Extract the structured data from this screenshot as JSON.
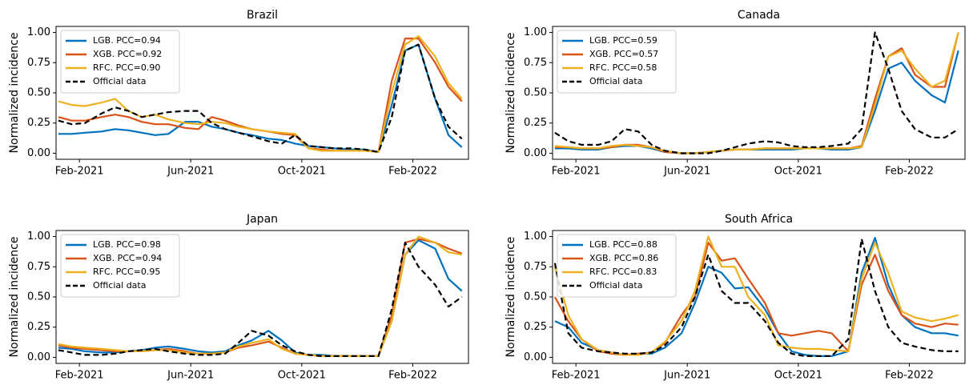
{
  "chart_data": [
    {
      "type": "line",
      "title": "Brazil",
      "ylabel": "Normalized incidence",
      "legend": "upper left",
      "x": [
        2021.02,
        2021.06,
        2021.1,
        2021.15,
        2021.19,
        2021.23,
        2021.27,
        2021.31,
        2021.35,
        2021.4,
        2021.44,
        2021.48,
        2021.52,
        2021.56,
        2021.6,
        2021.65,
        2021.69,
        2021.73,
        2021.77,
        2021.81,
        2021.85,
        2021.9,
        2021.94,
        2021.98,
        2022.02,
        2022.06,
        2022.1,
        2022.15,
        2022.19,
        2022.23
      ],
      "xlim": [
        2021.013,
        2022.25
      ],
      "xticks": [
        {
          "value": 2021.083,
          "label": "Feb-2021"
        },
        {
          "value": 2021.417,
          "label": "Jun-2021"
        },
        {
          "value": 2021.75,
          "label": "Oct-2021"
        },
        {
          "value": 2022.083,
          "label": "Feb-2022"
        }
      ],
      "ylim": [
        -0.05,
        1.05
      ],
      "yticks": [
        {
          "value": 0,
          "label": "0.00"
        },
        {
          "value": 0.25,
          "label": "0.25"
        },
        {
          "value": 0.5,
          "label": "0.50"
        },
        {
          "value": 0.75,
          "label": "0.75"
        },
        {
          "value": 1,
          "label": "1.00"
        }
      ],
      "series": [
        {
          "name": "LGB. PCC=0.94",
          "color": "#0072bd",
          "linestyle": "solid",
          "values": [
            0.16,
            0.16,
            0.17,
            0.18,
            0.2,
            0.19,
            0.17,
            0.15,
            0.16,
            0.26,
            0.26,
            0.22,
            0.2,
            0.17,
            0.15,
            0.12,
            0.11,
            0.08,
            0.06,
            0.05,
            0.04,
            0.03,
            0.03,
            0.01,
            0.4,
            0.85,
            0.9,
            0.45,
            0.15,
            0.05
          ]
        },
        {
          "name": "XGB. PCC=0.92",
          "color": "#d95319",
          "linestyle": "solid",
          "values": [
            0.3,
            0.27,
            0.27,
            0.3,
            0.32,
            0.3,
            0.26,
            0.24,
            0.24,
            0.21,
            0.2,
            0.3,
            0.27,
            0.23,
            0.2,
            0.18,
            0.16,
            0.15,
            0.04,
            0.03,
            0.02,
            0.02,
            0.02,
            0.01,
            0.6,
            0.95,
            0.95,
            0.75,
            0.55,
            0.43
          ]
        },
        {
          "name": "RFC. PCC=0.90",
          "color": "#edb120",
          "linestyle": "solid",
          "values": [
            0.43,
            0.4,
            0.39,
            0.42,
            0.45,
            0.35,
            0.3,
            0.32,
            0.28,
            0.25,
            0.24,
            0.26,
            0.25,
            0.22,
            0.2,
            0.18,
            0.17,
            0.16,
            0.04,
            0.02,
            0.02,
            0.02,
            0.02,
            0.01,
            0.5,
            0.9,
            0.97,
            0.8,
            0.58,
            0.45
          ]
        },
        {
          "name": "Official data",
          "color": "#000000",
          "linestyle": "dashed",
          "values": [
            0.27,
            0.24,
            0.25,
            0.33,
            0.38,
            0.35,
            0.3,
            0.32,
            0.34,
            0.35,
            0.35,
            0.25,
            0.2,
            0.17,
            0.14,
            0.1,
            0.08,
            0.15,
            0.06,
            0.05,
            0.04,
            0.04,
            0.03,
            0.01,
            0.3,
            0.85,
            0.9,
            0.45,
            0.22,
            0.12
          ]
        }
      ]
    },
    {
      "type": "line",
      "title": "Canada",
      "ylabel": "Normalized incidence",
      "legend": "upper left",
      "x": [
        2021.02,
        2021.06,
        2021.1,
        2021.15,
        2021.19,
        2021.23,
        2021.27,
        2021.31,
        2021.35,
        2021.4,
        2021.44,
        2021.48,
        2021.52,
        2021.56,
        2021.6,
        2021.65,
        2021.69,
        2021.73,
        2021.77,
        2021.81,
        2021.85,
        2021.9,
        2021.94,
        2021.98,
        2022.02,
        2022.06,
        2022.1,
        2022.15,
        2022.19,
        2022.23
      ],
      "xlim": [
        2021.013,
        2022.25
      ],
      "xticks": [
        {
          "value": 2021.083,
          "label": "Feb-2021"
        },
        {
          "value": 2021.417,
          "label": "Jun-2021"
        },
        {
          "value": 2021.75,
          "label": "Oct-2021"
        },
        {
          "value": 2022.083,
          "label": "Feb-2022"
        }
      ],
      "ylim": [
        -0.05,
        1.05
      ],
      "yticks": [
        {
          "value": 0,
          "label": "0.00"
        },
        {
          "value": 0.25,
          "label": "0.25"
        },
        {
          "value": 0.5,
          "label": "0.50"
        },
        {
          "value": 0.75,
          "label": "0.75"
        },
        {
          "value": 1,
          "label": "1.00"
        }
      ],
      "series": [
        {
          "name": "LGB. PCC=0.59",
          "color": "#0072bd",
          "linestyle": "solid",
          "values": [
            0.04,
            0.04,
            0.03,
            0.03,
            0.05,
            0.06,
            0.06,
            0.04,
            0.01,
            0.0,
            0.0,
            0.01,
            0.02,
            0.03,
            0.03,
            0.03,
            0.03,
            0.03,
            0.04,
            0.04,
            0.03,
            0.03,
            0.05,
            0.35,
            0.7,
            0.75,
            0.6,
            0.48,
            0.42,
            0.85
          ]
        },
        {
          "name": "XGB. PCC=0.57",
          "color": "#d95319",
          "linestyle": "solid",
          "values": [
            0.05,
            0.05,
            0.04,
            0.04,
            0.05,
            0.07,
            0.07,
            0.05,
            0.01,
            0.0,
            0.0,
            0.01,
            0.02,
            0.03,
            0.03,
            0.04,
            0.04,
            0.04,
            0.04,
            0.04,
            0.04,
            0.04,
            0.06,
            0.45,
            0.8,
            0.87,
            0.65,
            0.55,
            0.55,
            1.0
          ]
        },
        {
          "name": "RFC. PCC=0.58",
          "color": "#edb120",
          "linestyle": "solid",
          "values": [
            0.06,
            0.05,
            0.04,
            0.04,
            0.06,
            0.07,
            0.06,
            0.05,
            0.02,
            0.0,
            0.0,
            0.01,
            0.02,
            0.03,
            0.03,
            0.04,
            0.04,
            0.04,
            0.04,
            0.04,
            0.04,
            0.04,
            0.05,
            0.4,
            0.8,
            0.85,
            0.7,
            0.55,
            0.6,
            1.0
          ]
        },
        {
          "name": "Official data",
          "color": "#000000",
          "linestyle": "dashed",
          "values": [
            0.17,
            0.1,
            0.07,
            0.07,
            0.1,
            0.2,
            0.18,
            0.07,
            0.02,
            0.0,
            0.0,
            0.0,
            0.02,
            0.05,
            0.08,
            0.1,
            0.09,
            0.06,
            0.05,
            0.05,
            0.06,
            0.08,
            0.2,
            1.0,
            0.7,
            0.35,
            0.2,
            0.13,
            0.13,
            0.2
          ]
        }
      ]
    },
    {
      "type": "line",
      "title": "Japan",
      "ylabel": "Normalized incidence",
      "legend": "upper left",
      "x": [
        2021.02,
        2021.06,
        2021.1,
        2021.15,
        2021.19,
        2021.23,
        2021.27,
        2021.31,
        2021.35,
        2021.4,
        2021.44,
        2021.48,
        2021.52,
        2021.56,
        2021.6,
        2021.65,
        2021.69,
        2021.73,
        2021.77,
        2021.81,
        2021.85,
        2021.9,
        2021.94,
        2021.98,
        2022.02,
        2022.06,
        2022.1,
        2022.15,
        2022.19,
        2022.23
      ],
      "xlim": [
        2021.013,
        2022.25
      ],
      "xticks": [
        {
          "value": 2021.083,
          "label": "Feb-2021"
        },
        {
          "value": 2021.417,
          "label": "Jun-2021"
        },
        {
          "value": 2021.75,
          "label": "Oct-2021"
        },
        {
          "value": 2022.083,
          "label": "Feb-2022"
        }
      ],
      "ylim": [
        -0.05,
        1.05
      ],
      "yticks": [
        {
          "value": 0,
          "label": "0.00"
        },
        {
          "value": 0.25,
          "label": "0.25"
        },
        {
          "value": 0.5,
          "label": "0.50"
        },
        {
          "value": 0.75,
          "label": "0.75"
        },
        {
          "value": 1,
          "label": "1.00"
        }
      ],
      "series": [
        {
          "name": "LGB. PCC=0.98",
          "color": "#0072bd",
          "linestyle": "solid",
          "values": [
            0.08,
            0.07,
            0.05,
            0.04,
            0.04,
            0.05,
            0.06,
            0.08,
            0.09,
            0.07,
            0.05,
            0.04,
            0.05,
            0.1,
            0.14,
            0.22,
            0.14,
            0.04,
            0.02,
            0.02,
            0.01,
            0.01,
            0.01,
            0.01,
            0.3,
            0.85,
            0.97,
            0.9,
            0.65,
            0.55
          ]
        },
        {
          "name": "XGB. PCC=0.94",
          "color": "#d95319",
          "linestyle": "solid",
          "values": [
            0.1,
            0.08,
            0.07,
            0.06,
            0.05,
            0.05,
            0.05,
            0.06,
            0.07,
            0.05,
            0.03,
            0.03,
            0.04,
            0.08,
            0.1,
            0.13,
            0.08,
            0.03,
            0.02,
            0.01,
            0.01,
            0.01,
            0.01,
            0.01,
            0.35,
            0.95,
            0.98,
            0.95,
            0.9,
            0.86
          ]
        },
        {
          "name": "RFC. PCC=0.95",
          "color": "#edb120",
          "linestyle": "solid",
          "values": [
            0.11,
            0.09,
            0.08,
            0.07,
            0.06,
            0.05,
            0.05,
            0.06,
            0.06,
            0.04,
            0.03,
            0.03,
            0.04,
            0.09,
            0.12,
            0.15,
            0.07,
            0.03,
            0.02,
            0.01,
            0.01,
            0.01,
            0.01,
            0.01,
            0.3,
            0.85,
            1.0,
            0.95,
            0.87,
            0.85
          ]
        },
        {
          "name": "Official data",
          "color": "#000000",
          "linestyle": "dashed",
          "values": [
            0.06,
            0.04,
            0.02,
            0.02,
            0.03,
            0.05,
            0.06,
            0.07,
            0.05,
            0.03,
            0.02,
            0.02,
            0.03,
            0.12,
            0.22,
            0.18,
            0.1,
            0.05,
            0.02,
            0.01,
            0.01,
            0.01,
            0.01,
            0.01,
            0.4,
            0.95,
            0.75,
            0.6,
            0.42,
            0.5
          ]
        }
      ]
    },
    {
      "type": "line",
      "title": "South Africa",
      "ylabel": "Normalized incidence",
      "legend": "upper left",
      "x": [
        2021.02,
        2021.06,
        2021.1,
        2021.15,
        2021.19,
        2021.23,
        2021.27,
        2021.31,
        2021.35,
        2021.4,
        2021.44,
        2021.48,
        2021.52,
        2021.56,
        2021.6,
        2021.65,
        2021.69,
        2021.73,
        2021.77,
        2021.81,
        2021.85,
        2021.9,
        2021.94,
        2021.98,
        2022.02,
        2022.06,
        2022.1,
        2022.15,
        2022.19,
        2022.23
      ],
      "xlim": [
        2021.013,
        2022.25
      ],
      "xticks": [
        {
          "value": 2021.083,
          "label": "Feb-2021"
        },
        {
          "value": 2021.417,
          "label": "Jun-2021"
        },
        {
          "value": 2021.75,
          "label": "Oct-2021"
        },
        {
          "value": 2022.083,
          "label": "Feb-2022"
        }
      ],
      "ylim": [
        -0.05,
        1.05
      ],
      "yticks": [
        {
          "value": 0,
          "label": "0.00"
        },
        {
          "value": 0.25,
          "label": "0.25"
        },
        {
          "value": 0.5,
          "label": "0.50"
        },
        {
          "value": 0.75,
          "label": "0.75"
        },
        {
          "value": 1,
          "label": "1.00"
        }
      ],
      "series": [
        {
          "name": "LGB. PCC=0.88",
          "color": "#0072bd",
          "linestyle": "solid",
          "values": [
            0.3,
            0.25,
            0.12,
            0.06,
            0.04,
            0.02,
            0.03,
            0.03,
            0.08,
            0.2,
            0.45,
            0.75,
            0.7,
            0.57,
            0.58,
            0.4,
            0.2,
            0.05,
            0.02,
            0.01,
            0.01,
            0.05,
            0.7,
            0.99,
            0.6,
            0.35,
            0.25,
            0.2,
            0.2,
            0.18
          ]
        },
        {
          "name": "XGB. PCC=0.86",
          "color": "#d95319",
          "linestyle": "solid",
          "values": [
            0.5,
            0.3,
            0.15,
            0.05,
            0.03,
            0.02,
            0.03,
            0.04,
            0.12,
            0.35,
            0.5,
            0.95,
            0.8,
            0.82,
            0.65,
            0.45,
            0.2,
            0.18,
            0.2,
            0.22,
            0.2,
            0.05,
            0.6,
            0.85,
            0.55,
            0.35,
            0.28,
            0.25,
            0.28,
            0.27
          ]
        },
        {
          "name": "RFC. PCC=0.83",
          "color": "#edb120",
          "linestyle": "solid",
          "values": [
            0.75,
            0.35,
            0.15,
            0.06,
            0.04,
            0.02,
            0.02,
            0.04,
            0.13,
            0.3,
            0.55,
            1.0,
            0.75,
            0.75,
            0.5,
            0.35,
            0.1,
            0.08,
            0.07,
            0.07,
            0.06,
            0.05,
            0.65,
            0.95,
            0.7,
            0.38,
            0.33,
            0.3,
            0.32,
            0.35
          ]
        },
        {
          "name": "Official data",
          "color": "#000000",
          "linestyle": "dashed",
          "values": [
            0.78,
            0.2,
            0.08,
            0.05,
            0.04,
            0.03,
            0.03,
            0.04,
            0.1,
            0.25,
            0.5,
            0.85,
            0.55,
            0.45,
            0.45,
            0.3,
            0.12,
            0.03,
            0.01,
            0.01,
            0.01,
            0.15,
            0.98,
            0.55,
            0.25,
            0.12,
            0.09,
            0.06,
            0.05,
            0.05
          ]
        }
      ]
    }
  ]
}
